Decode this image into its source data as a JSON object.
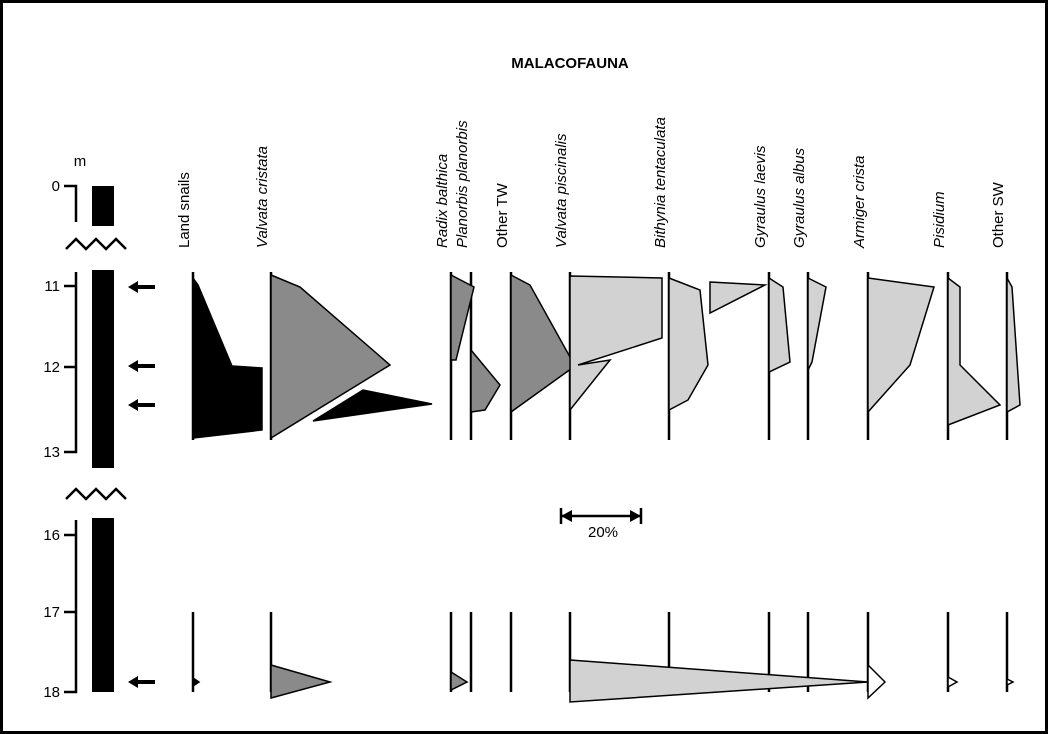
{
  "title": "MALACOFAUNA",
  "depth_unit": "m",
  "depth_ticks": [
    "0",
    "11",
    "12",
    "13",
    "16",
    "17",
    "18"
  ],
  "columns": [
    {
      "label": "Land snails",
      "italic": false
    },
    {
      "label": "Valvata cristata",
      "italic": true
    },
    {
      "label": "Radix balthica",
      "italic": true
    },
    {
      "label": "Planorbis planorbis",
      "italic": true
    },
    {
      "label": "Other TW",
      "italic": false
    },
    {
      "label": "Valvata piscinalis",
      "italic": true
    },
    {
      "label": "Bithynia tentaculata",
      "italic": true
    },
    {
      "label": "Gyraulus laevis",
      "italic": true
    },
    {
      "label": "Gyraulus albus",
      "italic": true
    },
    {
      "label": "Armiger crista",
      "italic": true
    },
    {
      "label": "Pisidium",
      "italic": true
    },
    {
      "label": "Other SW",
      "italic": false
    }
  ],
  "scale_bar_label": "20%"
}
